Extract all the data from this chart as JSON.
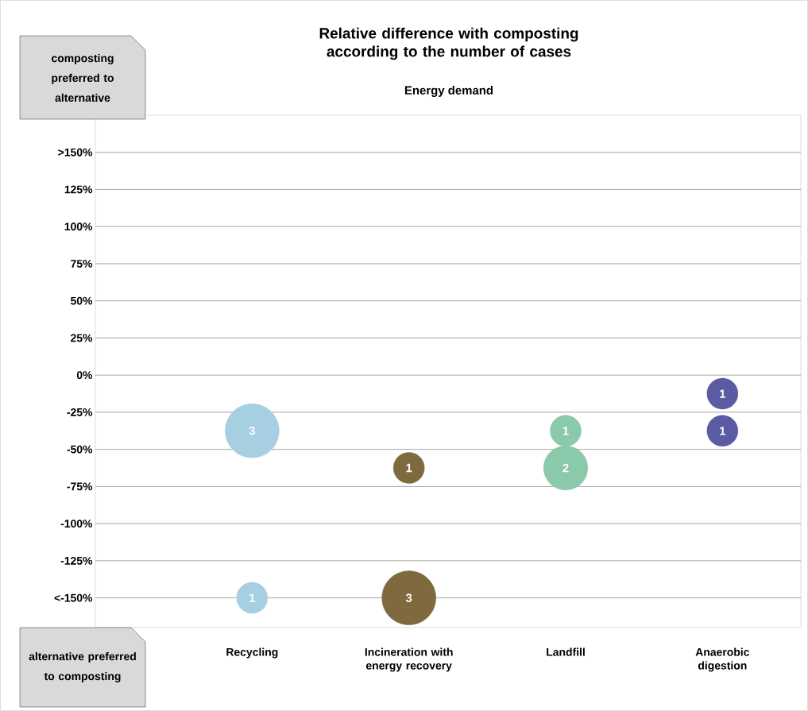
{
  "chart_data": {
    "type": "bubble",
    "title": "Relative difference with composting according to the number of cases",
    "subtitle": "Energy demand",
    "categories": [
      "Recycling",
      "Incineration with energy recovery",
      "Landfill",
      "Anaerobic digestion"
    ],
    "series": [
      {
        "colors": [
          "#a6cfe2",
          "#7e6a3e",
          "#8ac9a9",
          "#5b5ba3"
        ],
        "values": [
          -37.5,
          -62.5,
          -37.5,
          -12.5
        ],
        "sizes": [
          1,
          0.33,
          0.33,
          0.33
        ]
      },
      {
        "colors": [
          "#a6cfe2",
          "#7e6a3e",
          "#8ac9a9",
          "#5b5ba3"
        ],
        "values": [
          -150,
          -150,
          -62.5,
          -37.5
        ],
        "sizes": [
          0.33,
          1,
          0.67,
          0.33
        ]
      }
    ],
    "ylim": [
      -170,
      175
    ],
    "yticks": [
      {
        "value": -150,
        "label": "<-150%"
      },
      {
        "value": -125,
        "label": "-125%"
      },
      {
        "value": -100,
        "label": "-100%"
      },
      {
        "value": -75,
        "label": "-75%"
      },
      {
        "value": -50,
        "label": "-50%"
      },
      {
        "value": -25,
        "label": "-25%"
      },
      {
        "value": 0,
        "label": "0%"
      },
      {
        "value": 25,
        "label": "25%"
      },
      {
        "value": 50,
        "label": "50%"
      },
      {
        "value": 75,
        "label": "75%"
      },
      {
        "value": 100,
        "label": "100%"
      },
      {
        "value": 125,
        "label": "125%"
      },
      {
        "value": 150,
        "label": ">150%"
      }
    ],
    "grid": "y",
    "annotations": [
      "composting preferred to alternative",
      "alternative preferred to composting",
      {
        "text": "3",
        "x": "Recycling",
        "y": -37.5
      },
      {
        "text": "1",
        "x": "Recycling",
        "y": -150
      },
      {
        "text": "1",
        "x": "Incineration with energy recovery",
        "y": -62.5
      },
      {
        "text": "3",
        "x": "Incineration with energy recovery",
        "y": -150
      },
      {
        "text": "1",
        "x": "Landfill",
        "y": -37.5
      },
      {
        "text": "2",
        "x": "Landfill",
        "y": -62.5
      },
      {
        "text": "1",
        "x": "Anaerobic digestion",
        "y": -12.5
      },
      {
        "text": "1",
        "x": "Anaerobic digestion",
        "y": -37.5
      }
    ]
  }
}
